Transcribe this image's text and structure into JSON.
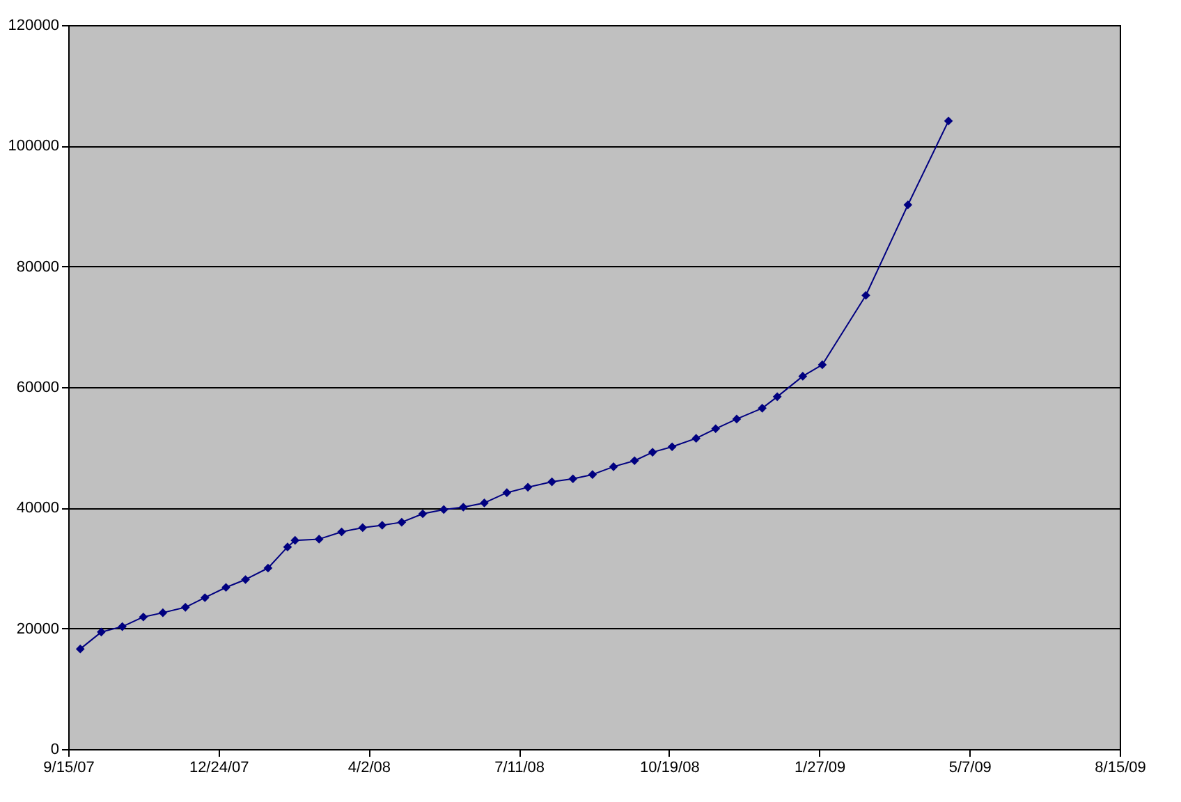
{
  "chart_data": {
    "type": "line",
    "marker": "diamond",
    "line_style": "solid",
    "grid": "y",
    "x": [
      "2007-09-23",
      "2007-10-07",
      "2007-10-21",
      "2007-11-04",
      "2007-11-17",
      "2007-12-02",
      "2007-12-15",
      "2007-12-29",
      "2008-01-11",
      "2008-01-26",
      "2008-02-08",
      "2008-02-13",
      "2008-02-29",
      "2008-03-15",
      "2008-03-29",
      "2008-04-11",
      "2008-04-24",
      "2008-05-08",
      "2008-05-22",
      "2008-06-04",
      "2008-06-18",
      "2008-07-03",
      "2008-07-17",
      "2008-08-02",
      "2008-08-16",
      "2008-08-29",
      "2008-09-12",
      "2008-09-26",
      "2008-10-08",
      "2008-10-21",
      "2008-11-06",
      "2008-11-19",
      "2008-12-03",
      "2008-12-20",
      "2008-12-30",
      "2009-01-16",
      "2009-01-29",
      "2009-02-27",
      "2009-03-27",
      "2009-04-23"
    ],
    "series": [
      {
        "color": "#000080",
        "values": [
          16600,
          19400,
          20300,
          21900,
          22600,
          23500,
          25100,
          26800,
          28100,
          30000,
          33500,
          34600,
          34800,
          36000,
          36700,
          37100,
          37600,
          39000,
          39700,
          40100,
          40800,
          42500,
          43400,
          44300,
          44800,
          45500,
          46800,
          47800,
          49200,
          50100,
          51500,
          53100,
          54700,
          56500,
          58400,
          61800,
          63700,
          75200,
          90200,
          104100
        ]
      }
    ],
    "xlim": [
      "2007-09-15",
      "2009-08-15"
    ],
    "xticks": [
      {
        "value": "2007-09-15",
        "label": "9/15/07"
      },
      {
        "value": "2007-12-24",
        "label": "12/24/07"
      },
      {
        "value": "2008-04-02",
        "label": "4/2/08"
      },
      {
        "value": "2008-07-11",
        "label": "7/11/08"
      },
      {
        "value": "2008-10-19",
        "label": "10/19/08"
      },
      {
        "value": "2009-01-27",
        "label": "1/27/09"
      },
      {
        "value": "2009-05-07",
        "label": "5/7/09"
      },
      {
        "value": "2009-08-15",
        "label": "8/15/09"
      }
    ],
    "ylim": [
      0,
      120000
    ],
    "yticks": [
      0,
      20000,
      40000,
      60000,
      80000,
      100000,
      120000
    ]
  }
}
